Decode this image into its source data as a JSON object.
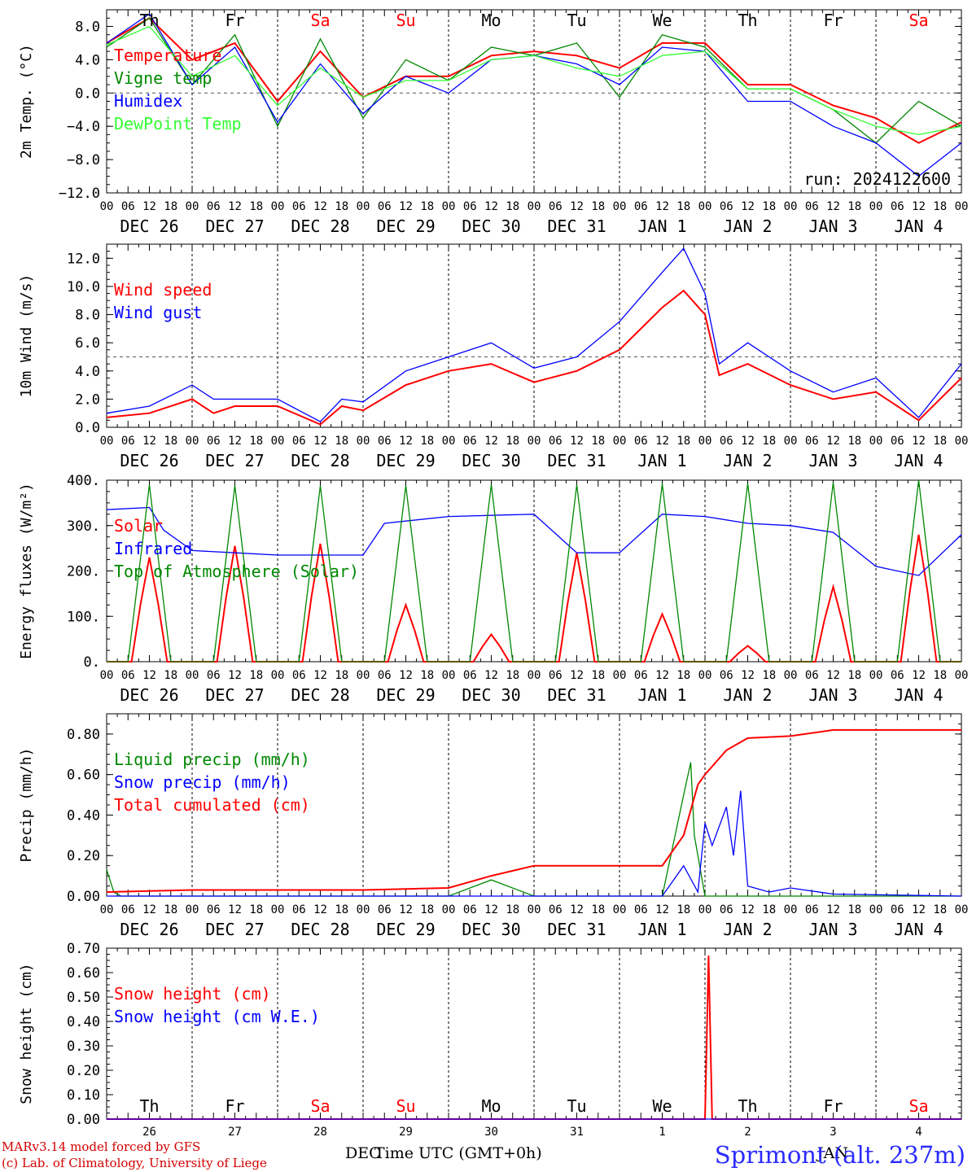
{
  "run_label": "run: 2024122600",
  "station": "Sprimont (alt. 237m)",
  "footer": {
    "credit1": "MARv3.14 model forced by GFS",
    "credit2": "(c) Lab. of Climatology, University of Liege",
    "xlabel": "Time UTC (GMT+0h)",
    "month1": "DEC",
    "month2": "JAN"
  },
  "colors": {
    "red": "#ff0000",
    "green": "#008800",
    "blue": "#0000ff",
    "lightgreen": "#33ff33",
    "weekend": "#ff0000"
  },
  "hour_labels": [
    "00",
    "06",
    "12",
    "18"
  ],
  "weekdays": [
    {
      "label": "Th",
      "weekend": false
    },
    {
      "label": "Fr",
      "weekend": false
    },
    {
      "label": "Sa",
      "weekend": true
    },
    {
      "label": "Su",
      "weekend": true
    },
    {
      "label": "Mo",
      "weekend": false
    },
    {
      "label": "Tu",
      "weekend": false
    },
    {
      "label": "We",
      "weekend": false
    },
    {
      "label": "Th",
      "weekend": false
    },
    {
      "label": "Fr",
      "weekend": false
    },
    {
      "label": "Sa",
      "weekend": true
    }
  ],
  "dates": [
    "DEC 26",
    "DEC 27",
    "DEC 28",
    "DEC 29",
    "DEC 30",
    "DEC 31",
    "JAN  1",
    "JAN  2",
    "JAN  3",
    "JAN  4"
  ],
  "day_numbers": [
    "26",
    "27",
    "28",
    "29",
    "30",
    "31",
    "1",
    "2",
    "3",
    "4"
  ],
  "chart_data": [
    {
      "type": "line",
      "ylabel": "2m Temp. (°C)",
      "ylim": [
        -12,
        10
      ],
      "yticks": [
        8,
        4,
        0,
        -4,
        -8,
        -12
      ],
      "ytick_labels": [
        "8.0",
        "4.0",
        "0.0",
        "−4.0",
        "−8.0",
        "−12.0"
      ],
      "xunit": "hours since DEC 26 00 UTC",
      "hline": 0,
      "series": [
        {
          "name": "Temperature",
          "color": "red",
          "x": [
            0,
            12,
            24,
            36,
            48,
            60,
            72,
            84,
            96,
            108,
            120,
            132,
            144,
            156,
            168,
            180,
            192,
            204,
            216,
            228,
            240
          ],
          "y": [
            6,
            9,
            4,
            6,
            -1,
            5,
            -0.5,
            2,
            2,
            4.5,
            5,
            4.5,
            3,
            6,
            6,
            1,
            1,
            -1.5,
            -3,
            -6,
            -3.5
          ]
        },
        {
          "name": "Vigne temp",
          "color": "green",
          "x": [
            0,
            12,
            24,
            36,
            48,
            60,
            72,
            84,
            96,
            108,
            120,
            132,
            144,
            156,
            168,
            180,
            192,
            204,
            216,
            228,
            240
          ],
          "y": [
            5.5,
            9,
            1,
            7,
            -4,
            6.5,
            -3,
            4,
            1.5,
            5.5,
            4.5,
            6,
            -0.5,
            7,
            5.5,
            0.5,
            0.5,
            -2,
            -6,
            -1,
            -4
          ]
        },
        {
          "name": "Humidex",
          "color": "blue",
          "x": [
            0,
            12,
            24,
            36,
            48,
            60,
            72,
            84,
            96,
            108,
            120,
            132,
            144,
            156,
            168,
            180,
            192,
            204,
            216,
            228,
            240
          ],
          "y": [
            6,
            9.5,
            1,
            5.5,
            -3.5,
            3.5,
            -2.5,
            2,
            0,
            4,
            4.5,
            3.5,
            1,
            5.5,
            5,
            -1,
            -1,
            -4,
            -6,
            -10,
            -6
          ]
        },
        {
          "name": "DewPoint Temp",
          "color": "lightgreen",
          "x": [
            0,
            12,
            24,
            36,
            48,
            60,
            72,
            84,
            96,
            108,
            120,
            132,
            144,
            156,
            168,
            180,
            192,
            204,
            216,
            228,
            240
          ],
          "y": [
            5.8,
            8,
            2,
            4.5,
            -1.5,
            3,
            -0.5,
            1.5,
            1.5,
            4,
            4.5,
            3,
            2,
            4.5,
            5,
            0.5,
            0.5,
            -2,
            -4,
            -5,
            -4
          ]
        }
      ],
      "legend_placement": "top-left"
    },
    {
      "type": "line",
      "ylabel": "10m Wind (m/s)",
      "ylim": [
        0,
        13
      ],
      "yticks": [
        0,
        2,
        4,
        6,
        8,
        10,
        12
      ],
      "ytick_labels": [
        "0.0",
        "2.0",
        "4.0",
        "6.0",
        "8.0",
        "10.0",
        "12.0"
      ],
      "hline": 5,
      "series": [
        {
          "name": "Wind speed",
          "color": "red",
          "x": [
            0,
            12,
            24,
            30,
            36,
            48,
            60,
            66,
            72,
            84,
            96,
            108,
            120,
            132,
            144,
            156,
            162,
            168,
            172,
            180,
            192,
            204,
            216,
            228,
            240
          ],
          "y": [
            0.7,
            1,
            2,
            1,
            1.5,
            1.5,
            0.2,
            1.5,
            1.2,
            3,
            4,
            4.5,
            3.2,
            4,
            5.5,
            8.5,
            9.7,
            8,
            3.7,
            4.5,
            3,
            2,
            2.5,
            0.5,
            3.5
          ]
        },
        {
          "name": "Wind gust",
          "color": "blue",
          "x": [
            0,
            12,
            24,
            30,
            36,
            48,
            60,
            66,
            72,
            84,
            96,
            108,
            120,
            132,
            144,
            156,
            162,
            168,
            172,
            180,
            192,
            204,
            216,
            228,
            240
          ],
          "y": [
            1,
            1.5,
            3,
            2,
            2,
            2,
            0.4,
            2,
            1.8,
            4,
            5,
            6,
            4.2,
            5,
            7.5,
            11,
            12.7,
            9.5,
            4.5,
            6,
            4,
            2.5,
            3.5,
            0.7,
            4.5
          ]
        }
      ],
      "legend_placement": "top-left"
    },
    {
      "type": "line",
      "ylabel": "Energy fluxes (W/m²)",
      "ylim": [
        0,
        400
      ],
      "yticks": [
        0,
        100,
        200,
        300,
        400
      ],
      "ytick_labels": [
        "0.",
        "100.",
        "200.",
        "300.",
        "400."
      ],
      "series": [
        {
          "name": "Solar",
          "color": "red",
          "peaks": [
            230,
            255,
            260,
            125,
            60,
            240,
            105,
            35,
            165,
            280
          ]
        },
        {
          "name": "Infrared",
          "color": "blue",
          "x": [
            0,
            12,
            16,
            24,
            36,
            48,
            72,
            78,
            96,
            120,
            132,
            144,
            156,
            168,
            180,
            192,
            204,
            216,
            228,
            240
          ],
          "y": [
            335,
            340,
            290,
            245,
            240,
            235,
            235,
            305,
            320,
            325,
            240,
            240,
            325,
            320,
            305,
            300,
            285,
            210,
            190,
            280
          ]
        },
        {
          "name": "Top of Atmosphere (Solar)",
          "color": "green",
          "peaks": [
            390,
            388,
            388,
            388,
            390,
            390,
            392,
            393,
            395,
            400
          ]
        }
      ],
      "legend_placement": "top-left"
    },
    {
      "type": "line",
      "ylabel": "Precip (mm/h)",
      "ylim": [
        0,
        0.9
      ],
      "yticks": [
        0,
        0.2,
        0.4,
        0.6,
        0.8
      ],
      "ytick_labels": [
        "0.00",
        "0.20",
        "0.40",
        "0.60",
        "0.80"
      ],
      "series": [
        {
          "name": "Liquid precip (mm/h)",
          "color": "green",
          "x": [
            0,
            2,
            4,
            6,
            96,
            108,
            120,
            156,
            162,
            164,
            165,
            168,
            170,
            240
          ],
          "y": [
            0.13,
            0.02,
            0,
            0,
            0,
            0.08,
            0,
            0,
            0.5,
            0.66,
            0.3,
            0,
            0,
            0
          ]
        },
        {
          "name": "Snow precip (mm/h)",
          "color": "blue",
          "x": [
            0,
            156,
            162,
            166,
            168,
            170,
            174,
            176,
            178,
            180,
            186,
            192,
            204,
            240
          ],
          "y": [
            0,
            0,
            0.15,
            0.02,
            0.36,
            0.25,
            0.44,
            0.2,
            0.52,
            0.05,
            0.02,
            0.04,
            0.01,
            0
          ]
        },
        {
          "name": "Total cumulated (cm)",
          "color": "red",
          "x": [
            0,
            12,
            24,
            72,
            96,
            108,
            120,
            156,
            162,
            166,
            168,
            174,
            180,
            192,
            204,
            216,
            240
          ],
          "y": [
            0.02,
            0.025,
            0.03,
            0.03,
            0.04,
            0.1,
            0.15,
            0.15,
            0.3,
            0.55,
            0.6,
            0.72,
            0.78,
            0.79,
            0.82,
            0.82,
            0.82
          ]
        }
      ],
      "legend_placement": "top-left"
    },
    {
      "type": "line",
      "ylabel": "Snow height (cm)",
      "ylim": [
        0,
        0.7
      ],
      "yticks": [
        0,
        0.1,
        0.2,
        0.3,
        0.4,
        0.5,
        0.6,
        0.7
      ],
      "ytick_labels": [
        "0.00",
        "0.10",
        "0.20",
        "0.30",
        "0.40",
        "0.50",
        "0.60",
        "0.70"
      ],
      "series": [
        {
          "name": "Snow height (cm)",
          "color": "red",
          "x": [
            0,
            168,
            169,
            170,
            240
          ],
          "y": [
            0,
            0,
            0.67,
            0,
            0
          ]
        },
        {
          "name": "Snow height (cm W.E.)",
          "color": "blue",
          "x": [
            0,
            240
          ],
          "y": [
            0,
            0
          ]
        }
      ],
      "legend_placement": "top-left"
    }
  ]
}
